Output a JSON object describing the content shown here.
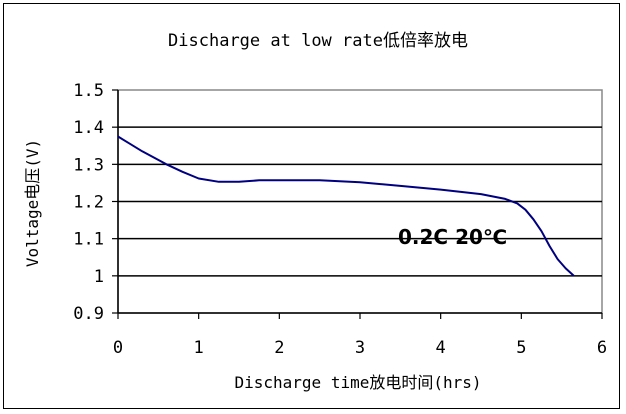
{
  "chart_data": {
    "type": "line",
    "title": "Discharge at low rate低倍率放电",
    "xlabel": "Discharge time放电时间(hrs)",
    "ylabel": "Voltage电压(V)",
    "xlim": [
      0,
      6
    ],
    "ylim": [
      0.9,
      1.5
    ],
    "x_ticks": [
      "0",
      "1",
      "2",
      "3",
      "4",
      "5",
      "6"
    ],
    "y_ticks": [
      "0.9",
      "1",
      "1.1",
      "1.2",
      "1.3",
      "1.4",
      "1.5"
    ],
    "grid": "horizontal",
    "annotation": "0.2C 20℃",
    "series": [
      {
        "color": "#000080",
        "x": [
          0,
          0.3,
          0.6,
          0.8,
          1.0,
          1.25,
          1.5,
          1.75,
          2.0,
          2.5,
          3.0,
          3.5,
          4.0,
          4.5,
          4.8,
          4.95,
          5.05,
          5.15,
          5.25,
          5.35,
          5.45,
          5.55,
          5.65
        ],
        "y": [
          1.375,
          1.335,
          1.3,
          1.28,
          1.262,
          1.253,
          1.253,
          1.257,
          1.257,
          1.257,
          1.252,
          1.242,
          1.232,
          1.22,
          1.207,
          1.195,
          1.178,
          1.152,
          1.12,
          1.08,
          1.045,
          1.02,
          1.0
        ]
      }
    ]
  }
}
